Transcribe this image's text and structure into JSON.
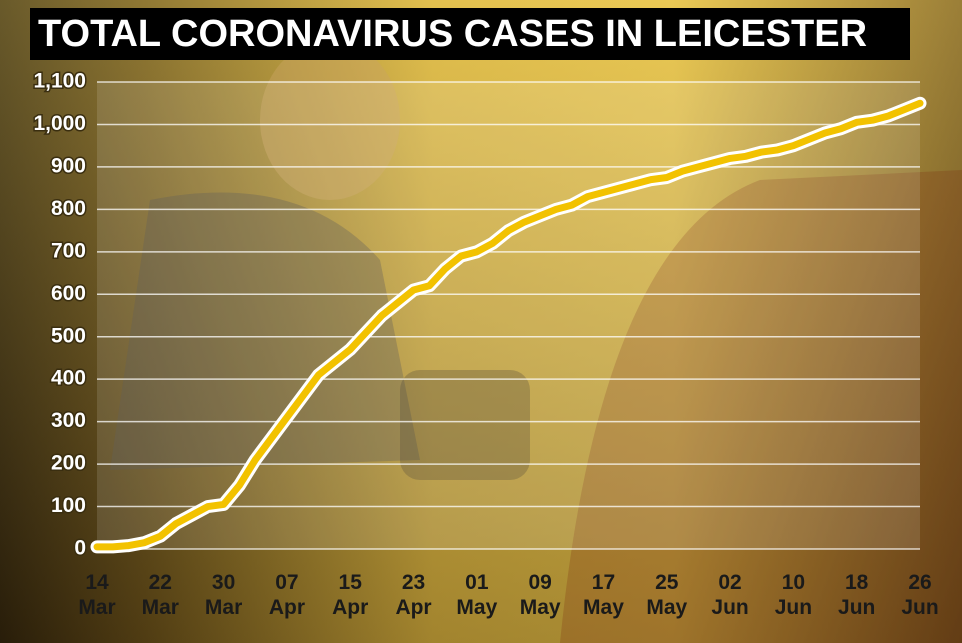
{
  "chart_data": {
    "type": "line",
    "title": "TOTAL CORONAVIRUS CASES IN LEICESTER",
    "categories": [
      "14 Mar",
      null,
      null,
      null,
      "22 Mar",
      null,
      null,
      null,
      "30 Mar",
      null,
      null,
      null,
      "07 Apr",
      null,
      null,
      null,
      "15 Apr",
      null,
      null,
      null,
      "23 Apr",
      null,
      null,
      null,
      "01 May",
      null,
      null,
      null,
      "09 May",
      null,
      null,
      null,
      "17 May",
      null,
      null,
      null,
      "25 May",
      null,
      null,
      null,
      "02 Jun",
      null,
      null,
      null,
      "10 Jun",
      null,
      null,
      null,
      "18 Jun",
      null,
      null,
      null,
      "26 Jun"
    ],
    "series": [
      {
        "name": "Total cases",
        "color": "#f2c200",
        "values": [
          5,
          5,
          8,
          15,
          30,
          60,
          80,
          100,
          105,
          150,
          210,
          260,
          310,
          360,
          410,
          440,
          470,
          510,
          550,
          580,
          610,
          620,
          660,
          690,
          700,
          720,
          750,
          770,
          785,
          800,
          810,
          830,
          840,
          850,
          860,
          870,
          875,
          890,
          900,
          910,
          920,
          925,
          935,
          940,
          950,
          965,
          980,
          990,
          1005,
          1010,
          1020,
          1035,
          1050
        ]
      }
    ],
    "ylim": [
      0,
      1100
    ],
    "yticks": [
      0,
      100,
      200,
      300,
      400,
      500,
      600,
      700,
      800,
      900,
      {
        "value": 1000,
        "label": "1,000"
      },
      {
        "value": 1100,
        "label": "1,100"
      }
    ],
    "grid": true
  }
}
